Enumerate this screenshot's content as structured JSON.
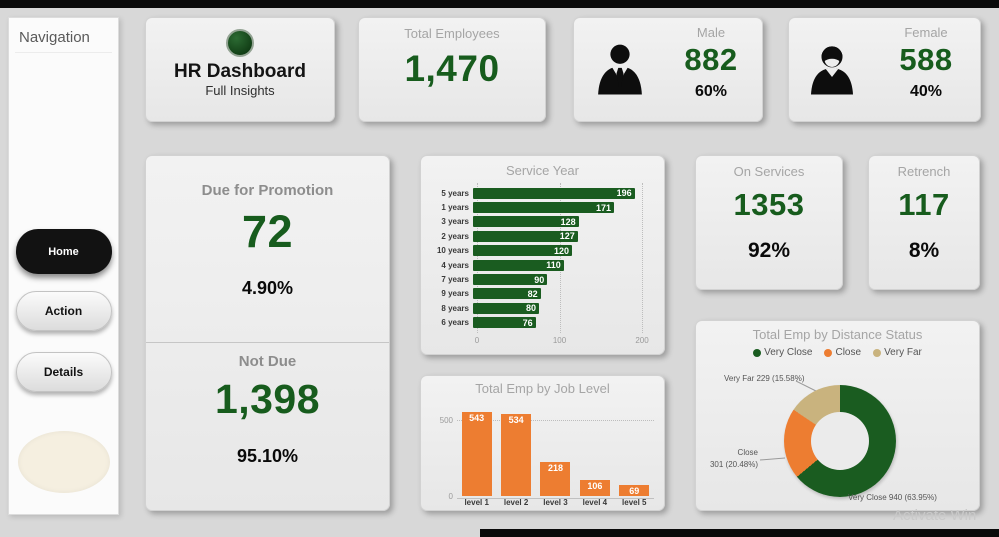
{
  "page": {
    "background": "#d8d8d8",
    "watermark": "Activate Win"
  },
  "colors": {
    "green": "#1a5c20",
    "orange": "#ED7D31",
    "tan": "#C9B37E",
    "value_green": "#175c1d"
  },
  "nav": {
    "title": "Navigation",
    "items": [
      {
        "label": "Home",
        "active": true
      },
      {
        "label": "Action",
        "active": false
      },
      {
        "label": "Details",
        "active": false
      }
    ]
  },
  "header": {
    "title": "HR Dashboard",
    "subtitle": "Full Insights"
  },
  "kpis": {
    "total_employees": {
      "label": "Total Employees",
      "value": "1,470"
    },
    "male": {
      "label": "Male",
      "value": "882",
      "pct": "60%"
    },
    "female": {
      "label": "Female",
      "value": "588",
      "pct": "40%"
    },
    "on_services": {
      "label": "On Services",
      "value": "1353",
      "pct": "92%"
    },
    "retrench": {
      "label": "Retrench",
      "value": "117",
      "pct": "8%"
    }
  },
  "promotion": {
    "due": {
      "label": "Due for Promotion",
      "value": "72",
      "pct": "4.90%"
    },
    "not_due": {
      "label": "Not Due",
      "value": "1,398",
      "pct": "95.10%"
    }
  },
  "chart_data": [
    {
      "type": "bar",
      "orientation": "horizontal",
      "title": "Service Year",
      "categories": [
        "5 years",
        "1 years",
        "3 years",
        "2 years",
        "10 years",
        "4 years",
        "7 years",
        "9 years",
        "8 years",
        "6 years"
      ],
      "values": [
        196,
        171,
        128,
        127,
        120,
        110,
        90,
        82,
        80,
        76
      ],
      "xlim": [
        0,
        200
      ],
      "x_ticks": [
        0,
        100,
        200
      ],
      "bar_color": "#1a5c20",
      "grid": true
    },
    {
      "type": "bar",
      "orientation": "vertical",
      "title": "Total Emp by Job Level",
      "categories": [
        "level 1",
        "level 2",
        "level 3",
        "level 4",
        "level 5"
      ],
      "values": [
        543,
        534,
        218,
        106,
        69
      ],
      "ylim": [
        0,
        500
      ],
      "y_ticks": [
        0,
        500
      ],
      "bar_color": "#ED7D31",
      "grid": true
    },
    {
      "type": "pie",
      "title": "Total Emp by Distance Status",
      "legend": [
        "Very Close",
        "Close",
        "Very Far"
      ],
      "slices": [
        {
          "name": "Very Close",
          "value": 940,
          "pct": "63.95%"
        },
        {
          "name": "Close",
          "value": 301,
          "pct": "20.48%"
        },
        {
          "name": "Very Far",
          "value": 229,
          "pct": "15.58%"
        }
      ],
      "labels": {
        "very_far": "Very Far 229 (15.58%)",
        "close": "Close\n301 (20.48%)",
        "very_close": "Very Close 940 (63.95%)"
      },
      "donut_hole": true,
      "legend_position": "top"
    }
  ]
}
